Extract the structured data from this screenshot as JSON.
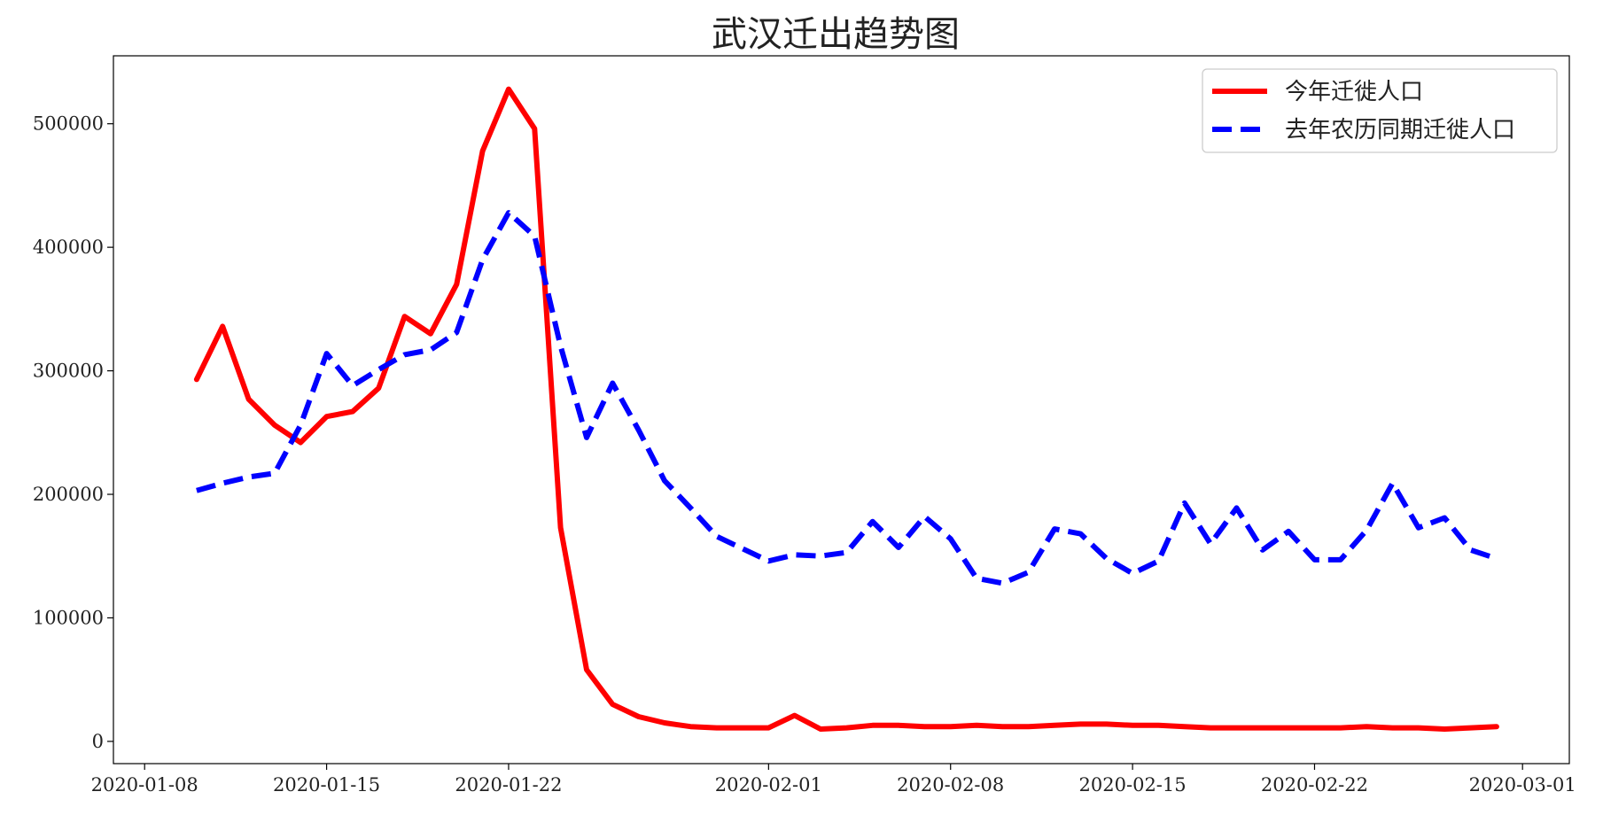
{
  "chart_data": {
    "type": "line",
    "title": "武汉迁出趋势图",
    "xlabel": "",
    "ylabel": "",
    "x_start": "2020-01-10",
    "x_step_days": 1,
    "xlim_days_from_start": [
      -3.2,
      52.8
    ],
    "ylim": [
      -18000,
      555000
    ],
    "x_ticks": [
      {
        "day": -2,
        "label": "2020-01-08"
      },
      {
        "day": 5,
        "label": "2020-01-15"
      },
      {
        "day": 12,
        "label": "2020-01-22"
      },
      {
        "day": 22,
        "label": "2020-02-01"
      },
      {
        "day": 29,
        "label": "2020-02-08"
      },
      {
        "day": 36,
        "label": "2020-02-15"
      },
      {
        "day": 43,
        "label": "2020-02-22"
      },
      {
        "day": 51,
        "label": "2020-03-01"
      }
    ],
    "y_ticks": [
      {
        "value": 0,
        "label": "0"
      },
      {
        "value": 100000,
        "label": "100000"
      },
      {
        "value": 200000,
        "label": "200000"
      },
      {
        "value": 300000,
        "label": "300000"
      },
      {
        "value": 400000,
        "label": "400000"
      },
      {
        "value": 500000,
        "label": "500000"
      }
    ],
    "legend_position": "top-right",
    "series": [
      {
        "name": "今年迁徙人口",
        "color": "#ff0000",
        "style": "solid",
        "values": [
          293000,
          336000,
          277000,
          256000,
          242000,
          263000,
          267000,
          286000,
          344000,
          330000,
          370000,
          478000,
          528000,
          496000,
          173000,
          58000,
          30000,
          20000,
          15000,
          12000,
          11000,
          11000,
          11000,
          21000,
          10000,
          11000,
          13000,
          13000,
          12000,
          12000,
          13000,
          12000,
          12000,
          13000,
          14000,
          14000,
          13000,
          13000,
          12000,
          11000,
          11000,
          11000,
          11000,
          11000,
          11000,
          12000,
          11000,
          11000,
          10000,
          11000,
          12000
        ]
      },
      {
        "name": "去年农历同期迁徙人口",
        "color": "#0000ff",
        "style": "dashed",
        "values": [
          203000,
          209000,
          214000,
          217000,
          256000,
          314000,
          288000,
          301000,
          313000,
          317000,
          331000,
          390000,
          428000,
          409000,
          320000,
          246000,
          290000,
          252000,
          211000,
          189000,
          166000,
          156000,
          146000,
          151000,
          150000,
          153000,
          178000,
          157000,
          182000,
          164000,
          132000,
          128000,
          137000,
          172000,
          168000,
          148000,
          136000,
          146000,
          193000,
          160000,
          189000,
          155000,
          170000,
          147000,
          147000,
          171000,
          209000,
          173000,
          181000,
          155000,
          148000
        ]
      }
    ]
  }
}
